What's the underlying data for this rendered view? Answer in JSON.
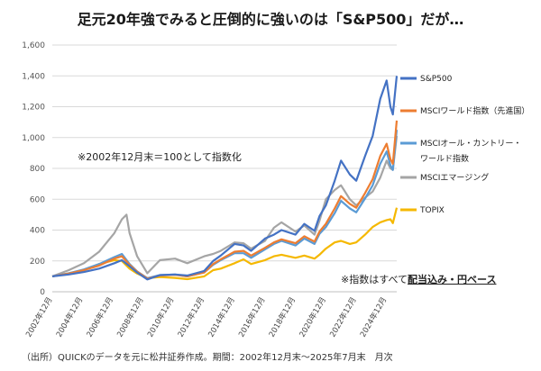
{
  "title": "足元20年強でみると圧倒的に強いのは「S&P500」だが…",
  "note_index": "※2002年12月末＝100として指数化",
  "note_dividend": {
    "prefix": "※指数はすべて",
    "emphasis": "配当込み・円ベース"
  },
  "source": "（出所）QUICKのデータを元に松井証券作成。期間：2002年12月末～2025年7月末　月次",
  "chart_data": {
    "type": "line",
    "title": "足元20年強でみると圧倒的に強いのは「S&P500」だが…",
    "xlabel": "",
    "ylabel": "",
    "ylim": [
      0,
      1600
    ],
    "yticks": [
      0,
      200,
      400,
      600,
      800,
      1000,
      1200,
      1400,
      1600
    ],
    "ytick_labels": [
      "0",
      "200",
      "400",
      "600",
      "800",
      "1,000",
      "1,200",
      "1,400",
      "1,600"
    ],
    "xlim": [
      2002.917,
      2025.583
    ],
    "xticks": [
      2002.917,
      2004.917,
      2006.917,
      2008.917,
      2010.917,
      2012.917,
      2014.917,
      2016.917,
      2018.917,
      2020.917,
      2022.917,
      2024.917
    ],
    "xtick_labels": [
      "2002年12月",
      "2004年12月",
      "2006年12月",
      "2008年12月",
      "2010年12月",
      "2012年12月",
      "2014年12月",
      "2016年12月",
      "2018年12月",
      "2020年12月",
      "2022年12月",
      "2024年12月"
    ],
    "grid": true,
    "legend_position": "right",
    "series": [
      {
        "name": "S&P500",
        "color": "#4472c4",
        "x": [
          2002.917,
          2004,
          2005,
          2006,
          2007,
          2007.5,
          2008,
          2008.5,
          2009.17,
          2010,
          2011,
          2011.8,
          2012.917,
          2013.5,
          2014,
          2014.917,
          2015.5,
          2016,
          2016.917,
          2017.5,
          2018,
          2018.917,
          2019.5,
          2020.17,
          2020.5,
          2020.917,
          2021.5,
          2021.917,
          2022.5,
          2022.917,
          2023.5,
          2024,
          2024.5,
          2024.917,
          2025.17,
          2025.33,
          2025.583
        ],
        "values": [
          100,
          112,
          128,
          150,
          185,
          205,
          165,
          125,
          80,
          108,
          112,
          105,
          135,
          200,
          235,
          310,
          300,
          265,
          345,
          370,
          400,
          370,
          440,
          395,
          490,
          560,
          720,
          850,
          760,
          720,
          880,
          1010,
          1250,
          1370,
          1200,
          1150,
          1400
        ]
      },
      {
        "name": "MSCIワールド指数（先進国）",
        "color": "#ed7d31",
        "x": [
          2002.917,
          2004,
          2005,
          2006,
          2007,
          2007.5,
          2008,
          2008.5,
          2009.17,
          2010,
          2011,
          2011.8,
          2012.917,
          2013.5,
          2014,
          2014.917,
          2015.5,
          2016,
          2016.917,
          2017.5,
          2018,
          2018.917,
          2019.5,
          2020.17,
          2020.5,
          2020.917,
          2021.5,
          2021.917,
          2022.5,
          2022.917,
          2023.5,
          2024,
          2024.5,
          2024.917,
          2025.17,
          2025.33,
          2025.583
        ],
        "values": [
          100,
          118,
          140,
          170,
          215,
          230,
          175,
          130,
          85,
          105,
          110,
          100,
          125,
          180,
          210,
          260,
          265,
          235,
          285,
          320,
          340,
          315,
          360,
          325,
          390,
          440,
          540,
          620,
          570,
          545,
          640,
          730,
          880,
          960,
          860,
          830,
          1110
        ]
      },
      {
        "name": "MSCIオール・カントリー・ワールド指数",
        "color": "#5b9bd5",
        "x": [
          2002.917,
          2004,
          2005,
          2006,
          2007,
          2007.5,
          2008,
          2008.5,
          2009.17,
          2010,
          2011,
          2011.8,
          2012.917,
          2013.5,
          2014,
          2014.917,
          2015.5,
          2016,
          2016.917,
          2017.5,
          2018,
          2018.917,
          2019.5,
          2020.17,
          2020.5,
          2020.917,
          2021.5,
          2021.917,
          2022.5,
          2022.917,
          2023.5,
          2024,
          2024.5,
          2024.917,
          2025.17,
          2025.33,
          2025.583
        ],
        "values": [
          100,
          120,
          145,
          180,
          225,
          245,
          180,
          132,
          88,
          108,
          112,
          100,
          125,
          175,
          205,
          250,
          250,
          220,
          275,
          310,
          330,
          300,
          345,
          310,
          375,
          420,
          510,
          590,
          540,
          515,
          605,
          690,
          830,
          910,
          820,
          790,
          1050
        ]
      },
      {
        "name": "MSCIエマージング",
        "color": "#a5a5a5",
        "x": [
          2002.917,
          2004,
          2005,
          2006,
          2007,
          2007.5,
          2007.8,
          2008,
          2008.5,
          2009.17,
          2010,
          2011,
          2011.8,
          2012.917,
          2013.5,
          2014,
          2014.917,
          2015.5,
          2016,
          2016.917,
          2017.5,
          2018,
          2018.917,
          2019.5,
          2020.17,
          2020.5,
          2020.917,
          2021.5,
          2021.917,
          2022.5,
          2022.917,
          2023.5,
          2024,
          2024.5,
          2024.917,
          2025.17,
          2025.33,
          2025.583
        ],
        "values": [
          100,
          140,
          185,
          260,
          380,
          470,
          500,
          380,
          230,
          120,
          205,
          215,
          185,
          230,
          245,
          265,
          320,
          315,
          280,
          330,
          415,
          450,
          390,
          430,
          370,
          460,
          600,
          660,
          690,
          600,
          560,
          610,
          650,
          740,
          850,
          800,
          790,
          1010
        ]
      },
      {
        "name": "TOPIX",
        "color": "#f5b800",
        "x": [
          2002.917,
          2004,
          2005,
          2006,
          2007,
          2007.5,
          2008,
          2008.5,
          2009.17,
          2010,
          2011,
          2011.8,
          2012.917,
          2013.5,
          2014,
          2014.917,
          2015.5,
          2016,
          2016.917,
          2017.5,
          2018,
          2018.917,
          2019.5,
          2020.17,
          2020.5,
          2020.917,
          2021.5,
          2021.917,
          2022.5,
          2022.917,
          2023.5,
          2024,
          2024.5,
          2024.917,
          2025.17,
          2025.33,
          2025.583
        ],
        "values": [
          100,
          120,
          140,
          180,
          205,
          200,
          150,
          118,
          88,
          95,
          90,
          82,
          100,
          140,
          150,
          185,
          210,
          180,
          205,
          230,
          240,
          220,
          235,
          215,
          240,
          280,
          320,
          330,
          310,
          320,
          370,
          420,
          450,
          465,
          470,
          445,
          545
        ]
      }
    ],
    "legend": [
      {
        "label": "S&P500",
        "color": "#4472c4"
      },
      {
        "label": "MSCIワールド指数（先進国）",
        "color": "#ed7d31"
      },
      {
        "label": "MSCIオール・カントリー・",
        "color": "#5b9bd5"
      },
      {
        "label": "ワールド指数",
        "color": ""
      },
      {
        "label": "MSCIエマージング",
        "color": "#a5a5a5"
      },
      {
        "label": "TOPIX",
        "color": "#f5b800"
      }
    ]
  }
}
